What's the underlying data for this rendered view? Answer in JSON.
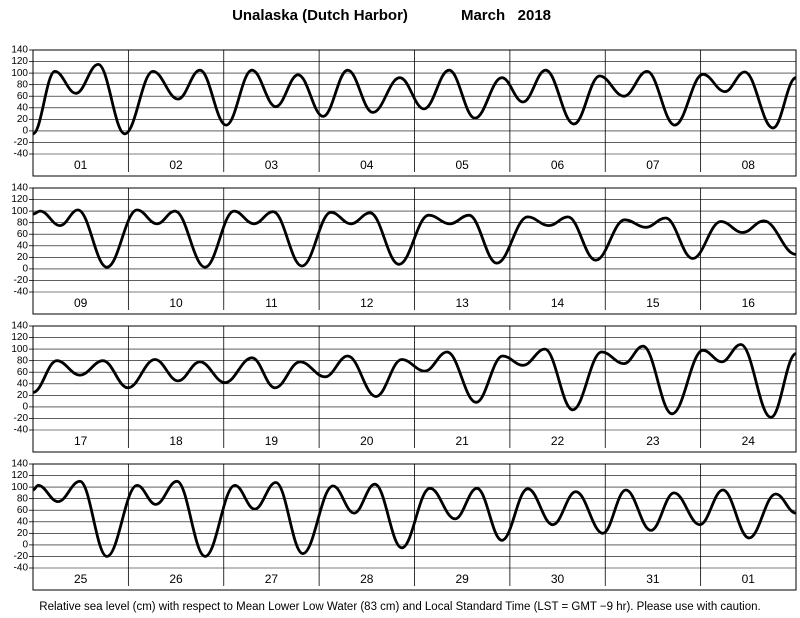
{
  "title": "Unalaska (Dutch Harbor)",
  "date": "March   2018",
  "note": "Relative sea level (cm) with respect to Mean Lower Low Water (83 cm) and Local Standard Time (LST = GMT −9 hr). Please use with caution.",
  "chart_data": [
    {
      "type": "line",
      "categories": [
        "01",
        "02",
        "03",
        "04",
        "05",
        "06",
        "07",
        "08"
      ],
      "color": "#000000",
      "grid": true,
      "xlim": [
        0,
        192
      ],
      "ylim": [
        -40,
        140
      ],
      "yticks": [
        -40,
        -20,
        0,
        20,
        40,
        60,
        80,
        100,
        120,
        140
      ],
      "x": [
        0,
        5.5,
        10.8,
        16.4,
        23.1,
        30.2,
        36.5,
        42,
        48.6,
        55.1,
        61.1,
        66.7,
        73,
        79.2,
        85.5,
        92.3,
        98.4,
        104.7,
        111.2,
        118,
        123.3,
        129,
        136.1,
        142.6,
        148.7,
        154.5,
        161.5,
        168.6,
        174.1,
        179.1,
        186.2,
        192
      ],
      "values": [
        -5,
        103,
        65,
        115,
        -5,
        103,
        55,
        105,
        10,
        105,
        42,
        97,
        25,
        105,
        32,
        92,
        38,
        105,
        22,
        92,
        50,
        105,
        12,
        95,
        60,
        103,
        10,
        98,
        68,
        102,
        5,
        92
      ]
    },
    {
      "type": "line",
      "categories": [
        "09",
        "10",
        "11",
        "12",
        "13",
        "14",
        "15",
        "16"
      ],
      "color": "#000000",
      "grid": true,
      "xlim": [
        0,
        192
      ],
      "ylim": [
        -40,
        140
      ],
      "yticks": [
        -40,
        -20,
        0,
        20,
        40,
        60,
        80,
        100,
        120,
        140
      ],
      "x": [
        0,
        1.8,
        6.8,
        11.3,
        18.6,
        26.2,
        31.2,
        35.7,
        43.3,
        50.6,
        55.6,
        60.4,
        67.7,
        75,
        80,
        84.8,
        92.1,
        99.6,
        104.9,
        109.7,
        116.7,
        124.5,
        129.8,
        134.6,
        141.6,
        148.9,
        154.2,
        159.2,
        166,
        173.1,
        178.6,
        183.9,
        192
      ],
      "values": [
        95,
        100,
        75,
        102,
        3,
        102,
        78,
        100,
        3,
        100,
        78,
        99,
        5,
        98,
        78,
        97,
        8,
        93,
        78,
        93,
        10,
        90,
        75,
        90,
        15,
        85,
        72,
        88,
        18,
        82,
        63,
        83,
        25
      ]
    },
    {
      "type": "line",
      "categories": [
        "17",
        "18",
        "19",
        "20",
        "21",
        "22",
        "23",
        "24"
      ],
      "color": "#000000",
      "grid": true,
      "xlim": [
        0,
        192
      ],
      "ylim": [
        -40,
        140
      ],
      "yticks": [
        -40,
        -20,
        0,
        20,
        40,
        60,
        80,
        100,
        120,
        140
      ],
      "x": [
        0,
        6,
        11.8,
        17.6,
        23.9,
        30.7,
        36.5,
        42,
        48.3,
        55.1,
        60.9,
        67.2,
        73.5,
        79.2,
        86.3,
        92.8,
        98.6,
        104.2,
        111.5,
        118.2,
        123.3,
        128.8,
        135.8,
        143.1,
        148.7,
        153.5,
        160.8,
        168.6,
        173.3,
        178.1,
        185.7,
        192
      ],
      "values": [
        25,
        80,
        55,
        80,
        33,
        82,
        45,
        78,
        42,
        85,
        33,
        78,
        52,
        88,
        18,
        82,
        62,
        95,
        8,
        88,
        72,
        100,
        -5,
        95,
        75,
        105,
        -12,
        98,
        78,
        108,
        -18,
        92
      ]
    },
    {
      "type": "line",
      "categories": [
        "25",
        "26",
        "27",
        "28",
        "29",
        "30",
        "31",
        "01"
      ],
      "color": "#000000",
      "grid": true,
      "xlim": [
        0,
        192
      ],
      "ylim": [
        -40,
        140
      ],
      "yticks": [
        -40,
        -20,
        0,
        20,
        40,
        60,
        80,
        100,
        120,
        140
      ],
      "x": [
        0,
        1.3,
        6.3,
        11.8,
        18.6,
        26.2,
        30.9,
        36.2,
        43.3,
        50.8,
        55.8,
        61.1,
        67.9,
        75.5,
        80.8,
        86,
        92.8,
        99.9,
        106.2,
        111.7,
        118,
        124.5,
        130.8,
        136.6,
        143.4,
        149.2,
        155.5,
        161.3,
        167.8,
        173.6,
        180.2,
        186.9,
        192
      ],
      "values": [
        95,
        103,
        75,
        110,
        -20,
        103,
        70,
        110,
        -20,
        103,
        62,
        108,
        -15,
        102,
        55,
        105,
        -5,
        98,
        45,
        98,
        8,
        97,
        35,
        92,
        20,
        95,
        25,
        90,
        35,
        95,
        12,
        88,
        55
      ]
    }
  ]
}
